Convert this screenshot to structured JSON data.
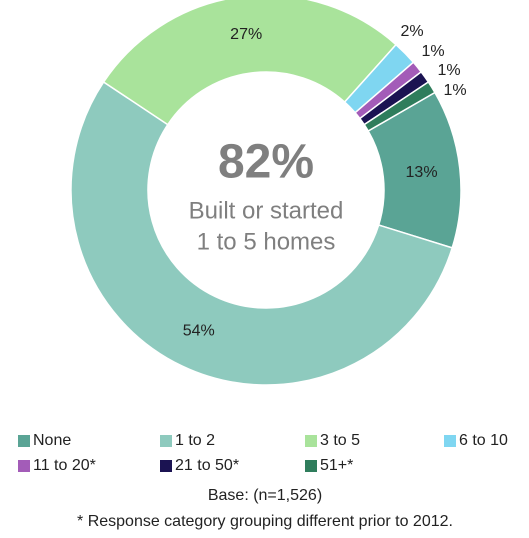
{
  "chart_data": {
    "type": "donut",
    "categories": [
      "None",
      "1 to 2",
      "3 to 5",
      "6 to 10",
      "11 to 20*",
      "21 to 50*",
      "51+*"
    ],
    "values": [
      13,
      54,
      27,
      2,
      1,
      1,
      1
    ],
    "value_labels": [
      "13%",
      "54%",
      "27%",
      "2%",
      "1%",
      "1%",
      "1%"
    ],
    "colors": [
      "#5aa495",
      "#8ecabe",
      "#a9e39b",
      "#7fd6f1",
      "#a35cb8",
      "#1b1352",
      "#2f7d5c"
    ],
    "center_value": "82%",
    "center_text": [
      "Built or started",
      "1 to 5 homes"
    ],
    "base_note": "Base: (n=1,526)",
    "footnote": "* Response category grouping different prior to 2012."
  }
}
